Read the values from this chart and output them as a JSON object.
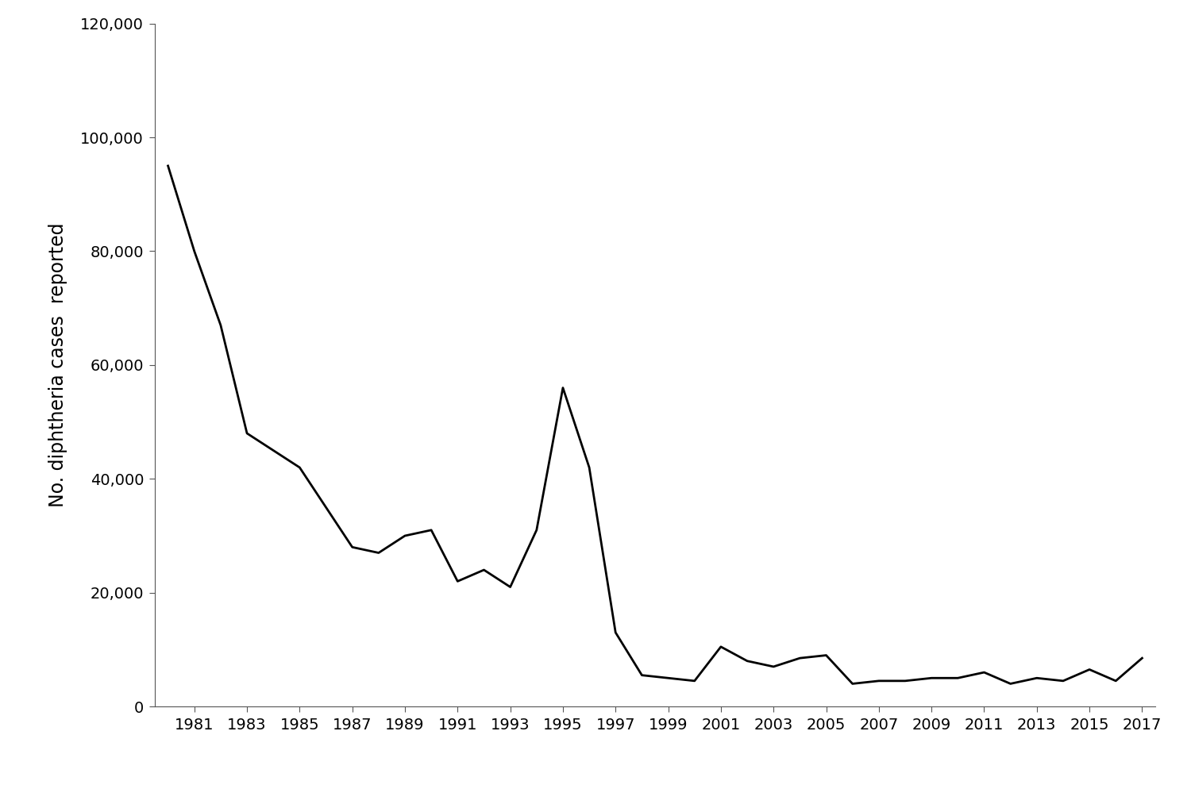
{
  "years": [
    1980,
    1981,
    1982,
    1983,
    1984,
    1985,
    1986,
    1987,
    1988,
    1989,
    1990,
    1991,
    1992,
    1993,
    1994,
    1995,
    1996,
    1997,
    1998,
    1999,
    2000,
    2001,
    2002,
    2003,
    2004,
    2005,
    2006,
    2007,
    2008,
    2009,
    2010,
    2011,
    2012,
    2013,
    2014,
    2015,
    2016,
    2017
  ],
  "values": [
    95000,
    80000,
    67000,
    48000,
    45000,
    42000,
    35000,
    28000,
    27000,
    30000,
    31000,
    22000,
    24000,
    21000,
    31000,
    56000,
    42000,
    13000,
    5500,
    5000,
    4500,
    10500,
    8000,
    7000,
    8500,
    9000,
    4000,
    4500,
    4500,
    5000,
    5000,
    6000,
    4000,
    5000,
    4500,
    6500,
    4500,
    8500
  ],
  "line_color": "#000000",
  "line_width": 2.0,
  "ylabel": "No. diphtheria cases  reported",
  "xlabel": "",
  "xlim": [
    1979.5,
    2017.5
  ],
  "ylim": [
    0,
    120000
  ],
  "yticks": [
    0,
    20000,
    40000,
    60000,
    80000,
    100000,
    120000
  ],
  "xticks": [
    1981,
    1983,
    1985,
    1987,
    1989,
    1991,
    1993,
    1995,
    1997,
    1999,
    2001,
    2003,
    2005,
    2007,
    2009,
    2011,
    2013,
    2015,
    2017
  ],
  "background_color": "#ffffff",
  "tick_fontsize": 14,
  "ylabel_fontsize": 17,
  "spine_visible": {
    "top": false,
    "right": false,
    "left": true,
    "bottom": true
  }
}
